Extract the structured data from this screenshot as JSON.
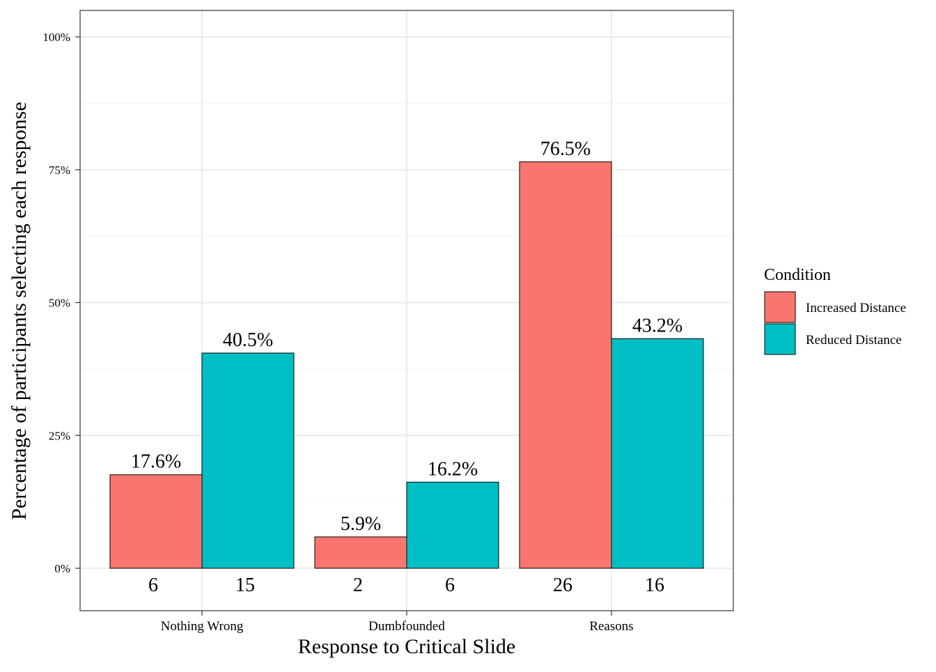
{
  "chart_data": {
    "type": "bar",
    "xlabel": "Response to Critical Slide",
    "ylabel": "Percentage of participants selecting each response",
    "categories": [
      "Nothing Wrong",
      "Dumbfounded",
      "Reasons"
    ],
    "series": [
      {
        "name": "Increased Distance",
        "color": "#F8766D",
        "values": [
          17.6,
          5.9,
          76.5
        ],
        "value_labels": [
          "17.6%",
          "5.9%",
          "76.5%"
        ],
        "counts": [
          "6",
          "2",
          "26"
        ]
      },
      {
        "name": "Reduced Distance",
        "color": "#00BFC4",
        "values": [
          40.5,
          16.2,
          43.2
        ],
        "value_labels": [
          "40.5%",
          "16.2%",
          "43.2%"
        ],
        "counts": [
          "15",
          "6",
          "16"
        ]
      }
    ],
    "ylim": [
      0,
      100
    ],
    "yticks": [
      0,
      25,
      50,
      75,
      100
    ],
    "ytick_labels": [
      "0%",
      "25%",
      "50%",
      "75%",
      "100%"
    ],
    "grid": true,
    "legend": {
      "title": "Condition",
      "placement": "right"
    }
  }
}
